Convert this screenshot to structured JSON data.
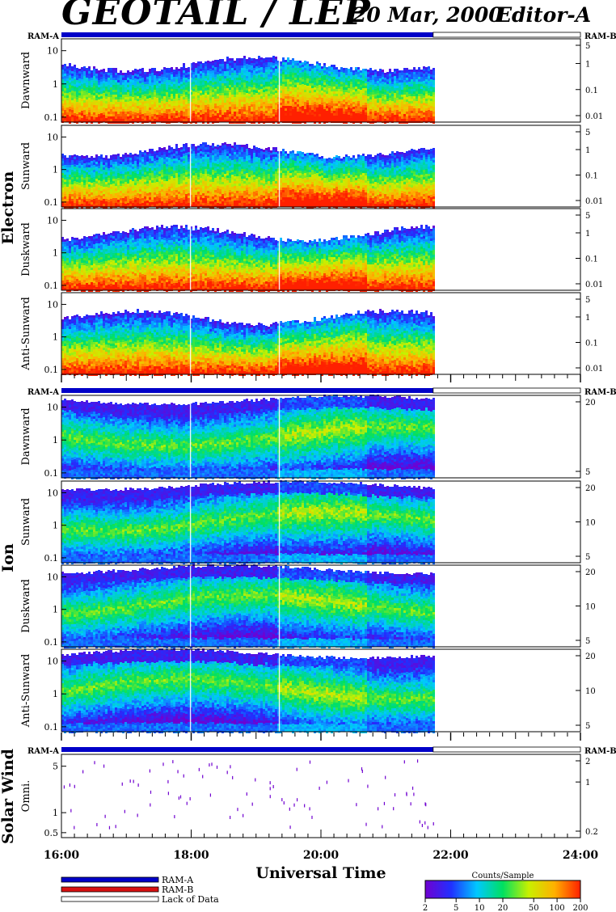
{
  "header": {
    "title": "GEOTAIL / LEP",
    "date": "20 Mar, 2000",
    "editor": "Editor-A"
  },
  "ram_labels": {
    "a": "RAM-A",
    "b": "RAM-B"
  },
  "legend": {
    "items": [
      {
        "label": "RAM-A",
        "color": "#0000c8"
      },
      {
        "label": "RAM-B",
        "color": "#d81010"
      },
      {
        "label": "Lack of Data",
        "color": "#ffffff"
      }
    ]
  },
  "colorbar": {
    "title": "Counts/Sample",
    "ticks": [
      "2",
      "5",
      "10",
      "20",
      "50",
      "100",
      "200"
    ],
    "tick_values": [
      2,
      5,
      10,
      20,
      50,
      100,
      200
    ],
    "range": [
      2,
      200
    ],
    "scale": "log",
    "colors": [
      "#7000d0",
      "#2030ff",
      "#00c8ff",
      "#00e060",
      "#c8f000",
      "#ffb000",
      "#ff2000"
    ]
  },
  "chart_data": {
    "type": "heatmap",
    "xlabel": "Universal Time",
    "x_range": [
      "16:00",
      "24:00"
    ],
    "x_range_hours": [
      16,
      24
    ],
    "x_ticks": [
      "16:00",
      "18:00",
      "20:00",
      "22:00",
      "24:00"
    ],
    "x_tick_hours": [
      16,
      18,
      20,
      22,
      24
    ],
    "data_end_hour": 21.73,
    "ram_a_coverage_hours": [
      16,
      21.73
    ],
    "lack_of_data_hours": [
      21.73,
      24
    ],
    "data_gap_hours": [
      17.98,
      19.35
    ],
    "groups": [
      {
        "name": "Electron",
        "panels": [
          {
            "label": "Dawnward",
            "left_ticks": [
              "10",
              "1",
              "0.1"
            ],
            "left_tick_values": [
              10,
              1,
              0.1
            ],
            "right_ticks": [
              "5",
              "1",
              "0.1",
              "0.01"
            ],
            "right_tick_values": [
              5,
              1,
              0.1,
              0.01
            ]
          },
          {
            "label": "Sunward",
            "left_ticks": [
              "10",
              "1",
              "0.1"
            ],
            "left_tick_values": [
              10,
              1,
              0.1
            ],
            "right_ticks": [
              "5",
              "1",
              "0.1",
              "0.01"
            ],
            "right_tick_values": [
              5,
              1,
              0.1,
              0.01
            ]
          },
          {
            "label": "Duskward",
            "left_ticks": [
              "10",
              "1",
              "0.1"
            ],
            "left_tick_values": [
              10,
              1,
              0.1
            ],
            "right_ticks": [
              "5",
              "1",
              "0.1",
              "0.01"
            ],
            "right_tick_values": [
              5,
              1,
              0.1,
              0.01
            ]
          },
          {
            "label": "Anti-Sunward",
            "left_ticks": [
              "10",
              "1",
              "0.1"
            ],
            "left_tick_values": [
              10,
              1,
              0.1
            ],
            "right_ticks": [
              "5",
              "1",
              "0.1",
              "0.01"
            ],
            "right_tick_values": [
              5,
              1,
              0.1,
              0.01
            ]
          }
        ]
      },
      {
        "name": "Ion",
        "panels": [
          {
            "label": "Dawnward",
            "left_ticks": [
              "10",
              "1",
              "0.1"
            ],
            "left_tick_values": [
              10,
              1,
              0.1
            ],
            "right_ticks": [
              "20",
              "5"
            ],
            "right_tick_values": [
              20,
              5
            ]
          },
          {
            "label": "Sunward",
            "left_ticks": [
              "10",
              "1",
              "0.1"
            ],
            "left_tick_values": [
              10,
              1,
              0.1
            ],
            "right_ticks": [
              "20",
              "10",
              "5"
            ],
            "right_tick_values": [
              20,
              10,
              5
            ]
          },
          {
            "label": "Duskward",
            "left_ticks": [
              "10",
              "1",
              "0.1"
            ],
            "left_tick_values": [
              10,
              1,
              0.1
            ],
            "right_ticks": [
              "20",
              "10",
              "5"
            ],
            "right_tick_values": [
              20,
              10,
              5
            ]
          },
          {
            "label": "Anti-Sunward",
            "left_ticks": [
              "10",
              "1",
              "0.1"
            ],
            "left_tick_values": [
              10,
              1,
              0.1
            ],
            "right_ticks": [
              "20",
              "10",
              "5"
            ],
            "right_tick_values": [
              20,
              10,
              5
            ]
          }
        ]
      },
      {
        "name": "Solar Wind",
        "panels": [
          {
            "label": "Omni.",
            "left_ticks": [
              "5",
              "1",
              "0.5"
            ],
            "left_tick_values": [
              5,
              1,
              0.5
            ],
            "right_ticks": [
              "2",
              "1",
              "0.2"
            ],
            "right_tick_values": [
              2,
              1,
              0.2
            ]
          }
        ]
      }
    ]
  }
}
